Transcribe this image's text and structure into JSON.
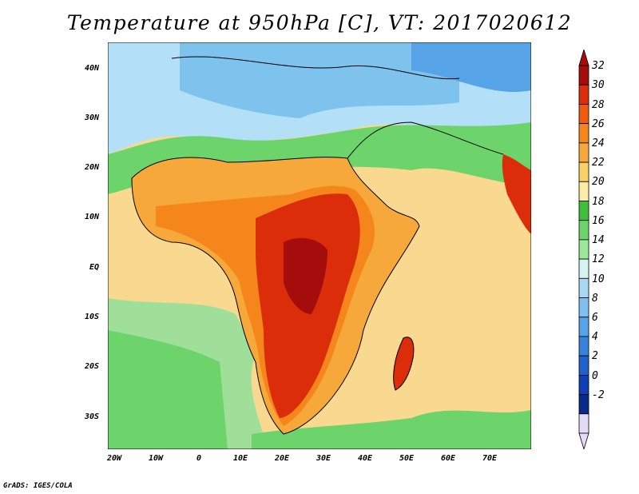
{
  "title": "Temperature at 950hPa [C], VT: 2017020612",
  "footer": "GrADS: IGES/COLA",
  "map": {
    "region": "Africa and surrounding ocean",
    "variable": "Temperature at 950hPa",
    "units": "C",
    "lon_range": [
      -23,
      80
    ],
    "lat_range": [
      -37,
      45
    ],
    "lon_ticks": [
      "20W",
      "10W",
      "0",
      "10E",
      "20E",
      "30E",
      "40E",
      "50E",
      "60E",
      "70E"
    ],
    "lat_ticks": [
      "40N",
      "30N",
      "20N",
      "10N",
      "EQ",
      "10S",
      "20S",
      "30S"
    ]
  },
  "colorbar": {
    "labels": [
      "32",
      "30",
      "28",
      "26",
      "24",
      "22",
      "20",
      "18",
      "16",
      "14",
      "12",
      "10",
      "8",
      "6",
      "4",
      "2",
      "0",
      "-2"
    ],
    "colors": [
      "#a50c0c",
      "#dc2d0a",
      "#f05a0f",
      "#f4861c",
      "#f6a93a",
      "#f8d266",
      "#fbeba4",
      "#3fbd3c",
      "#6cd46a",
      "#9be89a",
      "#d6f5f0",
      "#a8d8f5",
      "#7ec0f0",
      "#57a3e8",
      "#3783dc",
      "#2061cc",
      "#0e3fb4",
      "#092a8a",
      "#e3dcf8"
    ]
  }
}
